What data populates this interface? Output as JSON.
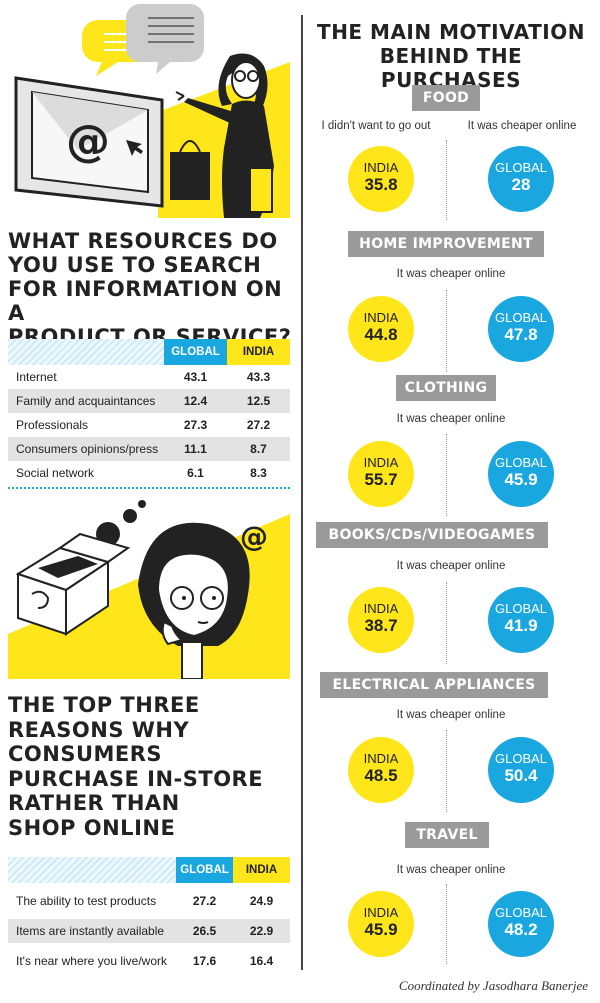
{
  "colors": {
    "india": "#ffe61a",
    "global": "#1aa7e0",
    "category": "#9a9a9a"
  },
  "left": {
    "q1_title": [
      "WHAT RESOURCES DO",
      "YOU USE TO SEARCH",
      "FOR INFORMATION ON A",
      "PRODUCT OR SERVICE?"
    ],
    "q2_title": [
      "THE TOP THREE",
      "REASONS WHY",
      "CONSUMERS",
      "PURCHASE IN-STORE",
      "RATHER THAN",
      "SHOP ONLINE"
    ],
    "col_global": "GLOBAL",
    "col_india": "INDIA",
    "illustration_icon": "at-sign-icon"
  },
  "right": {
    "title": [
      "THE MAIN MOTIVATION",
      "BEHIND THE PURCHASES"
    ],
    "india_label": "INDIA",
    "global_label": "GLOBAL"
  },
  "credit": "Coordinated by Jasodhara Banerjee",
  "chart_data": [
    {
      "type": "table",
      "title": "WHAT RESOURCES DO YOU USE TO SEARCH FOR INFORMATION ON A PRODUCT OR SERVICE?",
      "columns": [
        "GLOBAL",
        "INDIA"
      ],
      "rows": [
        {
          "label": "Internet",
          "values": [
            "43.1",
            "43.3"
          ]
        },
        {
          "label": "Family and acquaintances",
          "values": [
            "12.4",
            "12.5"
          ]
        },
        {
          "label": "Professionals",
          "values": [
            "27.3",
            "27.2"
          ]
        },
        {
          "label": "Consumers opinions/press",
          "values": [
            "11.1",
            "8.7"
          ]
        },
        {
          "label": "Social network",
          "values": [
            "6.1",
            "8.3"
          ]
        }
      ]
    },
    {
      "type": "table",
      "title": "THE TOP THREE REASONS WHY CONSUMERS PURCHASE IN-STORE RATHER THAN SHOP ONLINE",
      "columns": [
        "GLOBAL",
        "INDIA"
      ],
      "rows": [
        {
          "label": "The ability to test products",
          "values": [
            "27.2",
            "24.9"
          ]
        },
        {
          "label": "Items are instantly available",
          "values": [
            "26.5",
            "22.9"
          ]
        },
        {
          "label": "It's near where you live/work",
          "values": [
            "17.6",
            "16.4"
          ]
        }
      ]
    },
    {
      "type": "table",
      "title": "THE MAIN MOTIVATION BEHIND THE PURCHASES",
      "categories": [
        {
          "name": "FOOD",
          "india_reason": "I didn't want to go out",
          "global_reason": "It was cheaper online",
          "india": "35.8",
          "global": "28"
        },
        {
          "name": "HOME IMPROVEMENT",
          "reason": "It was cheaper online",
          "india": "44.8",
          "global": "47.8"
        },
        {
          "name": "CLOTHING",
          "reason": "It was cheaper online",
          "india": "55.7",
          "global": "45.9"
        },
        {
          "name": "BOOKS/CDs/VIDEOGAMES",
          "reason": "It was cheaper online",
          "india": "38.7",
          "global": "41.9"
        },
        {
          "name": "ELECTRICAL APPLIANCES",
          "reason": "It was cheaper online",
          "india": "48.5",
          "global": "50.4"
        },
        {
          "name": "TRAVEL",
          "reason": "It was cheaper online",
          "india": "45.9",
          "global": "48.2"
        }
      ]
    }
  ]
}
